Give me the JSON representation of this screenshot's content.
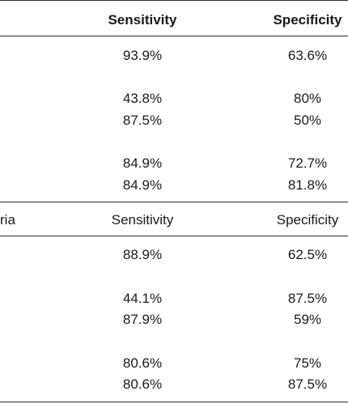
{
  "header": {
    "sensitivity": "Sensitivity",
    "specificity": "Specificity"
  },
  "section1": {
    "rows": [
      {
        "sensitivity": "93.9%",
        "specificity": "63.6%"
      },
      {
        "sensitivity": "43.8%",
        "specificity": "80%"
      },
      {
        "sensitivity": "87.5%",
        "specificity": "50%"
      },
      {
        "sensitivity": "84.9%",
        "specificity": "72.7%"
      },
      {
        "sensitivity": "84.9%",
        "specificity": "81.8%"
      }
    ]
  },
  "subheader": {
    "criteria_fragment": "ria",
    "sensitivity": "Sensitivity",
    "specificity": "Specificity"
  },
  "section2": {
    "rows": [
      {
        "sensitivity": "88.9%",
        "specificity": "62.5%"
      },
      {
        "sensitivity": "44.1%",
        "specificity": "87.5%"
      },
      {
        "sensitivity": "87.9%",
        "specificity": "59%"
      },
      {
        "sensitivity": "80.6%",
        "specificity": "75%"
      },
      {
        "sensitivity": "80.6%",
        "specificity": "87.5%"
      }
    ]
  }
}
